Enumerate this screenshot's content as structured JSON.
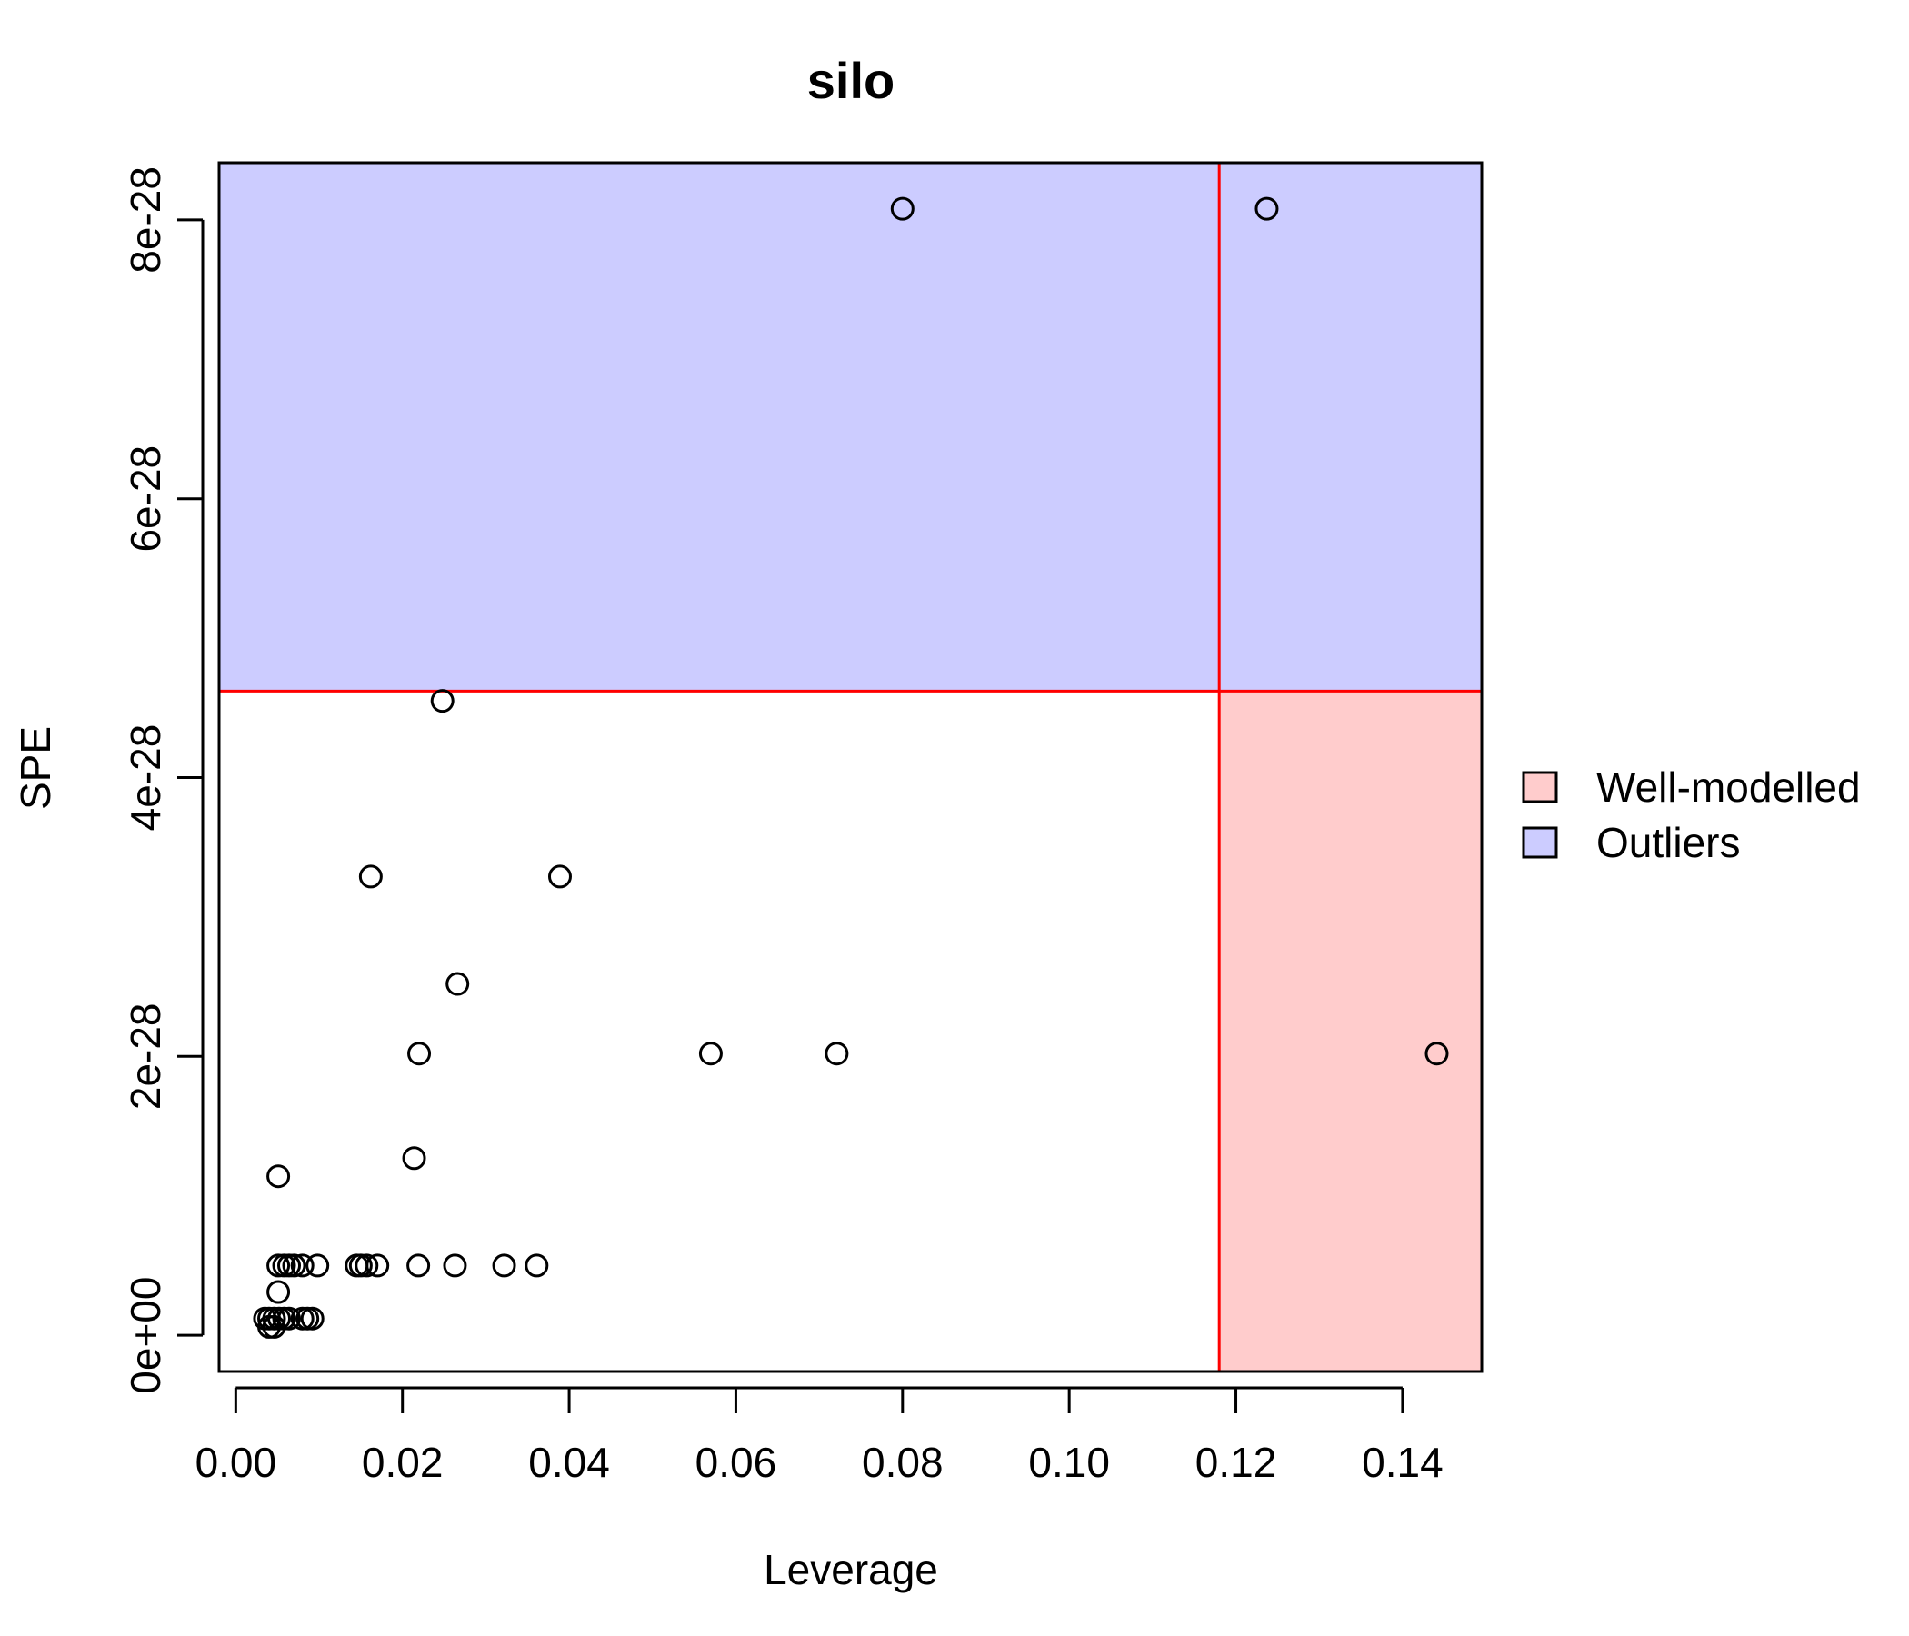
{
  "chart_data": {
    "type": "scatter",
    "title": "silo",
    "xlabel": "Leverage",
    "ylabel": "SPE",
    "xlim": [
      -0.002,
      0.1495
    ],
    "ylim": [
      -2.6e-29,
      8.41e-28
    ],
    "xticks": [
      0.0,
      0.02,
      0.04,
      0.06,
      0.08,
      0.1,
      0.12,
      0.14
    ],
    "xtick_labels": [
      "0.00",
      "0.02",
      "0.04",
      "0.06",
      "0.08",
      "0.10",
      "0.12",
      "0.14"
    ],
    "yticks": [
      0,
      2e-28,
      4e-28,
      6e-28,
      8e-28
    ],
    "ytick_labels": [
      "0e+00",
      "2e-28",
      "4e-28",
      "6e-28",
      "8e-28"
    ],
    "thresholds": {
      "leverage": 0.118,
      "spe": 4.62e-28
    },
    "regions": [
      {
        "name": "Outliers",
        "color": "#ccccff",
        "x_range": [
          -0.002,
          0.1495
        ],
        "y_range": [
          4.62e-28,
          8.41e-28
        ]
      },
      {
        "name": "Well-modelled",
        "color": "#ffcccc",
        "x_range": [
          0.118,
          0.1495
        ],
        "y_range": [
          -2.6e-29,
          4.62e-28
        ]
      }
    ],
    "legend": {
      "position": "right",
      "items": [
        {
          "label": "Well-modelled",
          "color": "#ffcccc"
        },
        {
          "label": "Outliers",
          "color": "#ccccff"
        }
      ]
    },
    "threshold_color": "#ff0000",
    "points": [
      {
        "x": 0.08,
        "y": 8.08e-28
      },
      {
        "x": 0.1237,
        "y": 8.08e-28
      },
      {
        "x": 0.0248,
        "y": 4.55e-28
      },
      {
        "x": 0.0162,
        "y": 3.29e-28
      },
      {
        "x": 0.0389,
        "y": 3.29e-28
      },
      {
        "x": 0.0266,
        "y": 2.52e-28
      },
      {
        "x": 0.022,
        "y": 2.02e-28
      },
      {
        "x": 0.057,
        "y": 2.02e-28
      },
      {
        "x": 0.0721,
        "y": 2.02e-28
      },
      {
        "x": 0.1441,
        "y": 2.02e-28
      },
      {
        "x": 0.0214,
        "y": 1.27e-28
      },
      {
        "x": 0.0051,
        "y": 1.14e-28
      },
      {
        "x": 0.0051,
        "y": 5e-29
      },
      {
        "x": 0.0058,
        "y": 5e-29
      },
      {
        "x": 0.0064,
        "y": 5e-29
      },
      {
        "x": 0.007,
        "y": 5e-29
      },
      {
        "x": 0.008,
        "y": 5e-29
      },
      {
        "x": 0.0098,
        "y": 5e-29
      },
      {
        "x": 0.0145,
        "y": 5e-29
      },
      {
        "x": 0.015,
        "y": 5e-29
      },
      {
        "x": 0.0157,
        "y": 5e-29
      },
      {
        "x": 0.017,
        "y": 5e-29
      },
      {
        "x": 0.0219,
        "y": 5e-29
      },
      {
        "x": 0.0263,
        "y": 5e-29
      },
      {
        "x": 0.0322,
        "y": 5e-29
      },
      {
        "x": 0.0361,
        "y": 5e-29
      },
      {
        "x": 0.0051,
        "y": 3.1e-29
      },
      {
        "x": 0.0035,
        "y": 1.2e-29
      },
      {
        "x": 0.004,
        "y": 1.2e-29
      },
      {
        "x": 0.0046,
        "y": 1.2e-29
      },
      {
        "x": 0.0052,
        "y": 1.2e-29
      },
      {
        "x": 0.0058,
        "y": 1.2e-29
      },
      {
        "x": 0.0064,
        "y": 1.2e-29
      },
      {
        "x": 0.008,
        "y": 1.2e-29
      },
      {
        "x": 0.0086,
        "y": 1.2e-29
      },
      {
        "x": 0.0092,
        "y": 1.2e-29
      },
      {
        "x": 0.004,
        "y": 6e-30
      },
      {
        "x": 0.0046,
        "y": 6e-30
      }
    ]
  }
}
